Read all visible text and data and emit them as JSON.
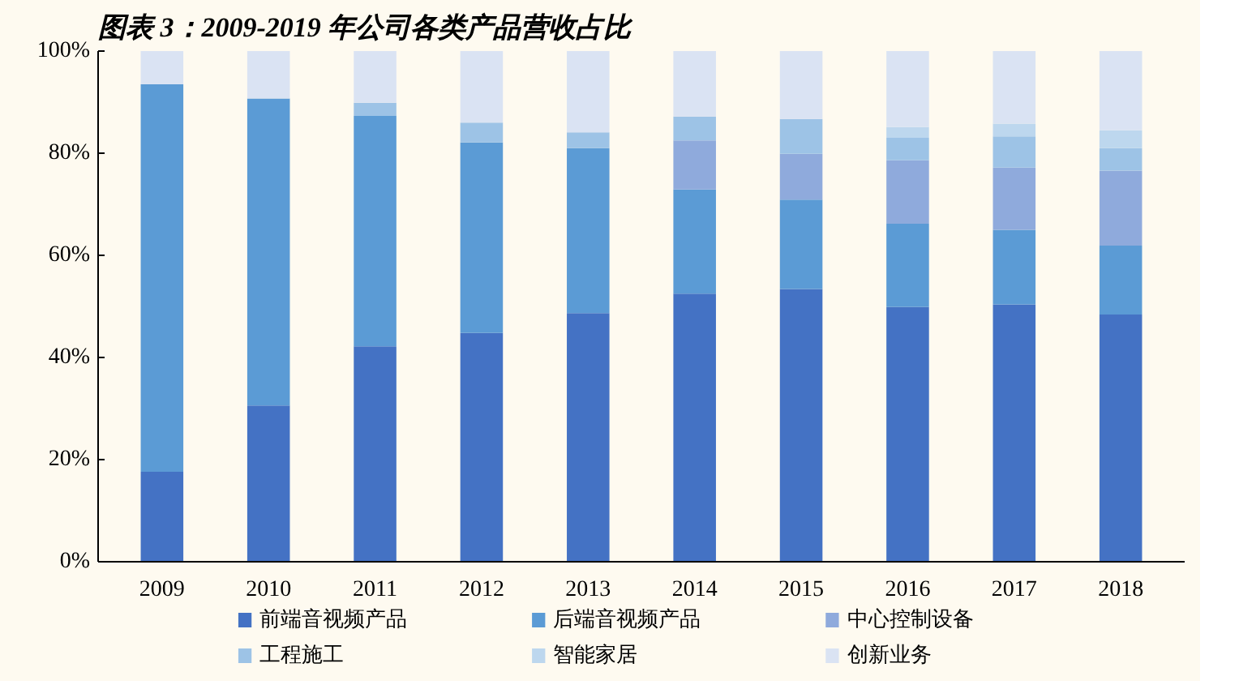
{
  "chart_data": {
    "type": "bar",
    "stacked": true,
    "title": "图表 3：2009-2019 年公司各类产品营收占比",
    "categories": [
      "2009",
      "2010",
      "2011",
      "2012",
      "2013",
      "2014",
      "2015",
      "2016",
      "2017",
      "2018"
    ],
    "series": [
      {
        "name": "前端音视频产品",
        "color": "#4472c4",
        "values": [
          17.6,
          30.6,
          42.2,
          44.8,
          48.7,
          52.5,
          53.4,
          49.9,
          50.4,
          48.4
        ]
      },
      {
        "name": "后端音视频产品",
        "color": "#5b9bd5",
        "values": [
          75.9,
          60.1,
          45.1,
          37.3,
          32.3,
          20.4,
          17.5,
          16.3,
          14.6,
          13.5
        ]
      },
      {
        "name": "中心控制设备",
        "color": "#8faadc",
        "values": [
          0,
          0,
          0,
          0,
          0,
          9.6,
          9.0,
          12.4,
          12.2,
          14.7
        ]
      },
      {
        "name": "工程施工",
        "color": "#9dc3e6",
        "values": [
          0,
          0,
          2.6,
          3.9,
          3.1,
          4.7,
          6.8,
          4.4,
          6.1,
          4.4
        ]
      },
      {
        "name": "智能家居",
        "color": "#bdd7ee",
        "values": [
          0,
          0,
          0,
          0,
          0,
          0,
          0,
          2.1,
          2.5,
          3.5
        ]
      },
      {
        "name": "创新业务",
        "color": "#dae3f3",
        "values": [
          6.5,
          9.3,
          10.1,
          14.0,
          15.9,
          12.8,
          13.3,
          14.9,
          14.2,
          15.5
        ]
      }
    ],
    "ylim": [
      0,
      100
    ],
    "yticks": [
      {
        "value": 0,
        "label": "0%"
      },
      {
        "value": 20,
        "label": "20%"
      },
      {
        "value": 40,
        "label": "40%"
      },
      {
        "value": 60,
        "label": "60%"
      },
      {
        "value": 80,
        "label": "80%"
      },
      {
        "value": 100,
        "label": "100%"
      }
    ],
    "grid": false,
    "legend": "bottom"
  }
}
